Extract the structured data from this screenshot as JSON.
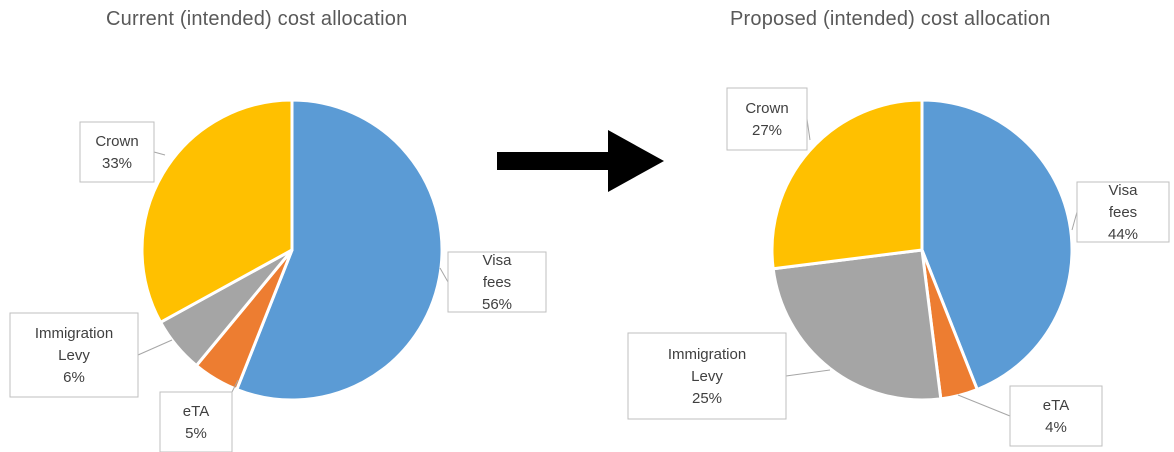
{
  "chart_data": [
    {
      "type": "pie",
      "title": "Current (intended) cost allocation",
      "slices": [
        {
          "label": "Visa fees",
          "value": 56,
          "value_label": "56%",
          "color": "#5B9BD5"
        },
        {
          "label": "eTA",
          "value": 5,
          "value_label": "5%",
          "color": "#ED7D31"
        },
        {
          "label": "Immigration Levy",
          "value": 6,
          "value_label": "6%",
          "color": "#A5A5A5"
        },
        {
          "label": "Crown",
          "value": 33,
          "value_label": "33%",
          "color": "#FFC000"
        }
      ]
    },
    {
      "type": "pie",
      "title": "Proposed (intended) cost allocation",
      "slices": [
        {
          "label": "Visa fees",
          "value": 44,
          "value_label": "44%",
          "color": "#5B9BD5"
        },
        {
          "label": "eTA",
          "value": 4,
          "value_label": "4%",
          "color": "#ED7D31"
        },
        {
          "label": "Immigration Levy",
          "value": 25,
          "value_label": "25%",
          "color": "#A5A5A5"
        },
        {
          "label": "Crown",
          "value": 27,
          "value_label": "27%",
          "color": "#FFC000"
        }
      ]
    }
  ],
  "arrow": {
    "icon": "right-arrow-icon",
    "color": "#000000"
  }
}
